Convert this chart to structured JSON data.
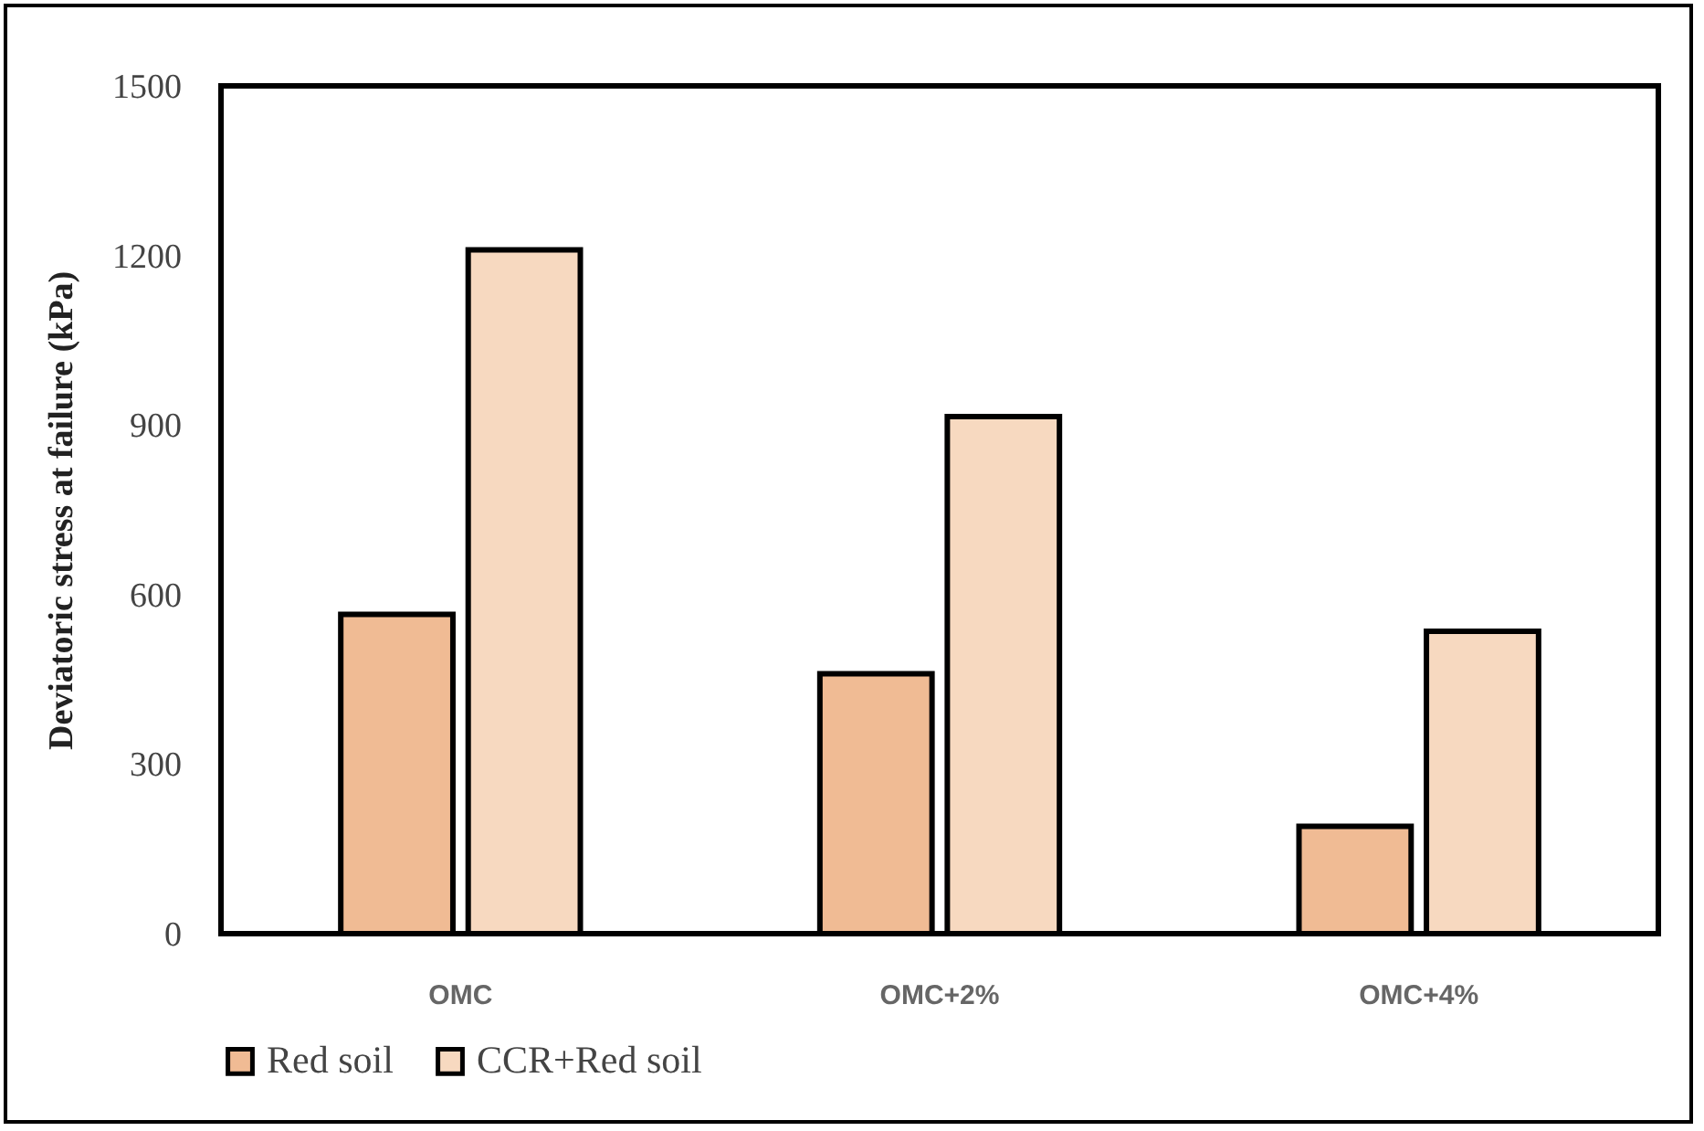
{
  "chart_data": {
    "type": "bar",
    "ylabel": "Deviatoric stress at failure (kPa)",
    "categories": [
      "OMC",
      "OMC+2%",
      "OMC+4%"
    ],
    "series": [
      {
        "name": "Red soil",
        "color": "#f0bb94",
        "values": [
          565,
          460,
          190
        ]
      },
      {
        "name": "CCR+Red soil",
        "color": "#f7d9c0",
        "values": [
          1210,
          915,
          535
        ]
      }
    ],
    "ylim": [
      0,
      1500
    ],
    "yticks": [
      0,
      300,
      600,
      900,
      1200,
      1500
    ],
    "grid": false,
    "legend": "bottom"
  }
}
